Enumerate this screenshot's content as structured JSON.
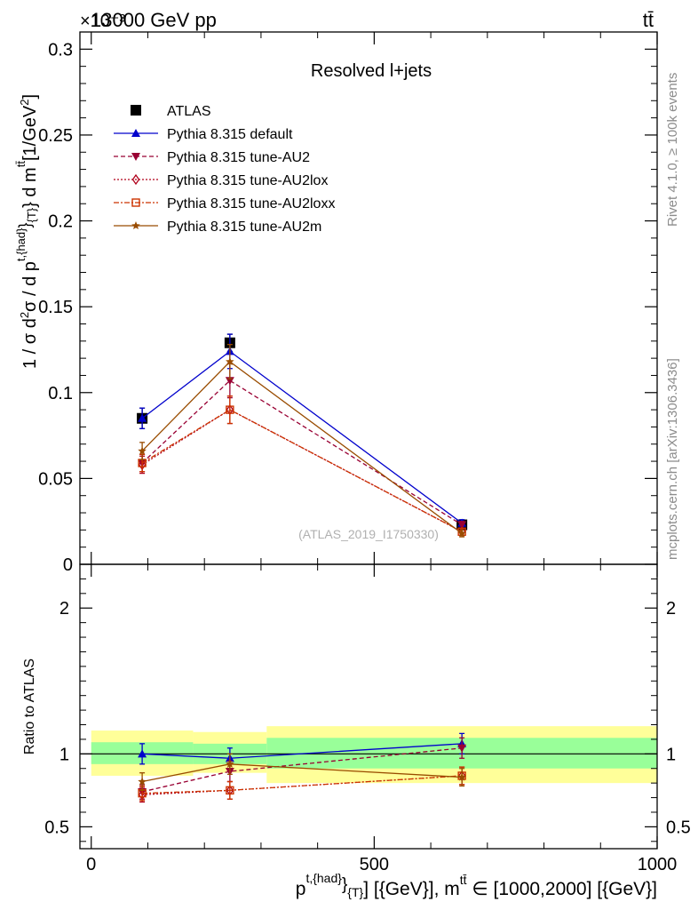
{
  "header": {
    "left_title": "13000 GeV pp",
    "right_title": "tt̄",
    "exponent": "×10⁻³",
    "side_label_top": "Rivet 4.1.0, ≥ 100k events",
    "side_label_bottom": "mcplots.cern.ch [arXiv:1306.3436]"
  },
  "chart_data": [
    {
      "type": "line",
      "panel": "main",
      "title": "Resolved l+jets",
      "watermark": "(ATLAS_2019_I1750330)",
      "ylabel": "1 / σ d²σ / d p^{t,{had}}_{T} d m^{tt̄} [1/GeV²]",
      "ylabel_parts": {
        "lhs": "1 / σ d",
        "sq": "2",
        "mid": "σ / d p",
        "sup1": "t,{had}",
        "close": "}",
        "sub1": "{T}",
        "rest": "} d m",
        "sup2": "tt̄",
        "unit": "[1/GeV",
        "unit_sq": "2",
        "unit_end": "]"
      },
      "xlim": [
        -20,
        1000
      ],
      "ylim": [
        0,
        0.31
      ],
      "y_scale_note": "×10⁻³",
      "y_ticks": [
        0,
        0.05,
        0.1,
        0.15,
        0.2,
        0.25,
        0.3
      ],
      "y_tick_labels": [
        "0",
        "0.05",
        "0.1",
        "0.15",
        "0.2",
        "0.25",
        "0.3"
      ],
      "x": [
        90,
        245,
        655
      ],
      "series": [
        {
          "name": "ATLAS",
          "color": "#000000",
          "marker": "square",
          "line": "none",
          "values": [
            0.085,
            0.129,
            0.023
          ],
          "errors": [
            0.006,
            0.005,
            0.002
          ]
        },
        {
          "name": "Pythia 8.315 default",
          "color": "#0000cc",
          "marker": "triangle-up",
          "line": "solid",
          "values": [
            0.085,
            0.124,
            0.024
          ],
          "errors": [
            0.006,
            0.01,
            0.002
          ]
        },
        {
          "name": "Pythia 8.315 tune-AU2",
          "color": "#990033",
          "marker": "triangle-down",
          "line": "dashed",
          "values": [
            0.059,
            0.107,
            0.023
          ],
          "errors": [
            0.005,
            0.01,
            0.002
          ]
        },
        {
          "name": "Pythia 8.315 tune-AU2lox",
          "color": "#b0001a",
          "marker": "diamond",
          "line": "dotted",
          "values": [
            0.058,
            0.09,
            0.019
          ],
          "errors": [
            0.005,
            0.008,
            0.002
          ]
        },
        {
          "name": "Pythia 8.315 tune-AU2loxx",
          "color": "#cc3300",
          "marker": "square-open",
          "line": "dashdot",
          "values": [
            0.059,
            0.09,
            0.019
          ],
          "errors": [
            0.005,
            0.008,
            0.002
          ]
        },
        {
          "name": "Pythia 8.315 tune-AU2m",
          "color": "#994c00",
          "marker": "star",
          "line": "solid",
          "values": [
            0.066,
            0.118,
            0.018
          ],
          "errors": [
            0.005,
            0.01,
            0.002
          ]
        }
      ]
    },
    {
      "type": "line",
      "panel": "ratio",
      "ylabel": "Ratio to ATLAS",
      "xlabel": "p^{t,{had}}_{T} [{GeV}], m^{tt̄} ∈ [1000,2000] [{GeV}]",
      "xlabel_parts": {
        "p": "p",
        "sup1": "t,{had}",
        "close": "}",
        "sub1": "{T}",
        "rest": "] [{GeV}], m",
        "sup2": "tt̄",
        "range": " ∈ [1000,2000] [{GeV}]"
      },
      "xlim": [
        -20,
        1000
      ],
      "ylim": [
        0.35,
        2.3
      ],
      "y_ticks": [
        0.5,
        1,
        2
      ],
      "y_tick_labels": [
        "0.5",
        "1",
        "2"
      ],
      "y_tick_labels_right": [
        "0.5",
        "1",
        "2"
      ],
      "x_ticks": [
        0,
        500,
        1000
      ],
      "x_tick_labels": [
        "0",
        "500",
        "1000"
      ],
      "bands": [
        {
          "x0": 0,
          "x1": 180,
          "green": [
            0.93,
            1.08
          ],
          "yellow": [
            0.85,
            1.16
          ]
        },
        {
          "x0": 180,
          "x1": 310,
          "green": [
            0.93,
            1.07
          ],
          "yellow": [
            0.87,
            1.15
          ]
        },
        {
          "x0": 310,
          "x1": 1000,
          "green": [
            0.9,
            1.11
          ],
          "yellow": [
            0.8,
            1.19
          ]
        }
      ],
      "x": [
        90,
        245,
        655
      ],
      "series": [
        {
          "name": "Pythia 8.315 default",
          "values": [
            1.0,
            0.97,
            1.07
          ],
          "errors": [
            0.07,
            0.07,
            0.07
          ]
        },
        {
          "name": "Pythia 8.315 tune-AU2",
          "values": [
            0.74,
            0.88,
            1.04
          ],
          "errors": [
            0.05,
            0.07,
            0.07
          ]
        },
        {
          "name": "Pythia 8.315 tune-AU2lox",
          "values": [
            0.72,
            0.75,
            0.85
          ],
          "errors": [
            0.05,
            0.06,
            0.06
          ]
        },
        {
          "name": "Pythia 8.315 tune-AU2loxx",
          "values": [
            0.73,
            0.75,
            0.85
          ],
          "errors": [
            0.05,
            0.06,
            0.06
          ]
        },
        {
          "name": "Pythia 8.315 tune-AU2m",
          "values": [
            0.81,
            0.93,
            0.84
          ],
          "errors": [
            0.06,
            0.07,
            0.06
          ]
        }
      ]
    }
  ]
}
